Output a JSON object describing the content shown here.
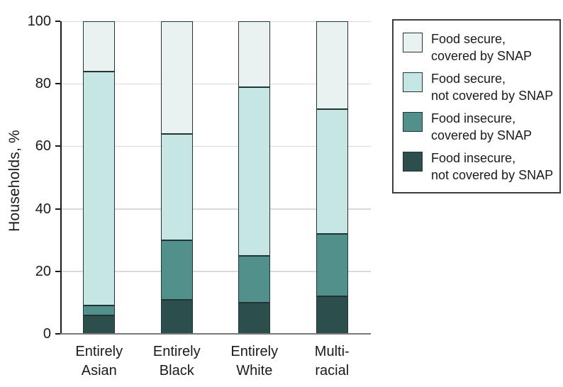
{
  "colors": {
    "text": "#1a1a1a",
    "axis": "#1a1a1a",
    "gridline": "#d9d9d9",
    "baseline": "#7a7a7a",
    "bar_border": "#223435",
    "legend_border": "#3d3d3d",
    "background": "#ffffff"
  },
  "chart_data": {
    "type": "bar",
    "stacked": true,
    "title": "",
    "xlabel": "",
    "ylabel": "Households, %",
    "ylim": [
      0,
      100
    ],
    "yticks": [
      0,
      20,
      40,
      60,
      80,
      100
    ],
    "grid": "horizontal",
    "legend_position": "right",
    "categories": [
      {
        "id": "entirely-asian",
        "label_lines": [
          "Entirely",
          "Asian"
        ]
      },
      {
        "id": "entirely-black",
        "label_lines": [
          "Entirely",
          "Black"
        ]
      },
      {
        "id": "entirely-white",
        "label_lines": [
          "Entirely",
          "White"
        ]
      },
      {
        "id": "multiracial",
        "label_lines": [
          "Multi-",
          "racial"
        ]
      }
    ],
    "series": [
      {
        "id": "food-secure-covered-by-snap",
        "name_lines": [
          "Food secure,",
          "covered by SNAP"
        ],
        "color": "#e9f2f1",
        "values": [
          16,
          36,
          21,
          28
        ]
      },
      {
        "id": "food-secure-not-covered-by-snap",
        "name_lines": [
          "Food secure,",
          "not covered by SNAP"
        ],
        "color": "#c6e6e3",
        "values": [
          75,
          34,
          54,
          40
        ]
      },
      {
        "id": "food-insecure-covered-by-snap",
        "name_lines": [
          "Food insecure,",
          "covered by SNAP"
        ],
        "color": "#52908c",
        "values": [
          3,
          19,
          15,
          20
        ]
      },
      {
        "id": "food-insecure-not-covered-by-snap",
        "name_lines": [
          "Food insecure,",
          "not covered by SNAP"
        ],
        "color": "#2c4f4c",
        "values": [
          6,
          11,
          10,
          12
        ]
      }
    ],
    "stack_note": "series listed top-to-bottom as stacked in each bar"
  }
}
